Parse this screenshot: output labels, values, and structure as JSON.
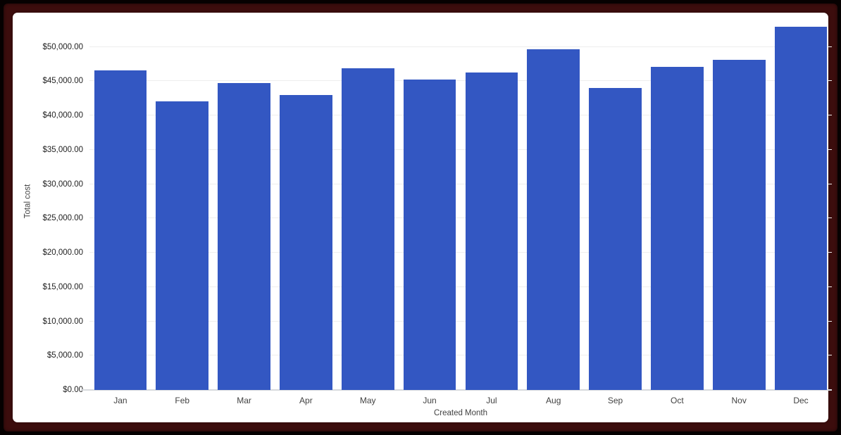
{
  "frame": {
    "outer_color": "#060101",
    "inner_color": "#3c0d0d",
    "canvas_color": "#ffffff"
  },
  "chart_data": {
    "type": "bar",
    "title": "",
    "xlabel": "Created Month",
    "ylabel": "Total cost",
    "categories": [
      "Jan",
      "Feb",
      "Mar",
      "Apr",
      "May",
      "Jun",
      "Jul",
      "Aug",
      "Sep",
      "Oct",
      "Nov",
      "Dec"
    ],
    "values": [
      46600,
      42050,
      44700,
      43000,
      46850,
      45250,
      46250,
      49700,
      44050,
      47050,
      48100,
      52950
    ],
    "ylim": [
      0,
      55000
    ],
    "ytick_interval": 5000,
    "ytick_labels": [
      "$0.00",
      "$5,000.00",
      "$10,000.00",
      "$15,000.00",
      "$20,000.00",
      "$25,000.00",
      "$30,000.00",
      "$35,000.00",
      "$40,000.00",
      "$45,000.00",
      "$50,000.00"
    ],
    "grid": true,
    "legend": "none",
    "bar_color": "#3357c2",
    "gridline_color": "#eeeeee",
    "axis_line_color": "#d7d9dd",
    "ytick_color": "#1f1f1f",
    "xtick_color": "#424242",
    "axis_title_color": "#424242"
  }
}
